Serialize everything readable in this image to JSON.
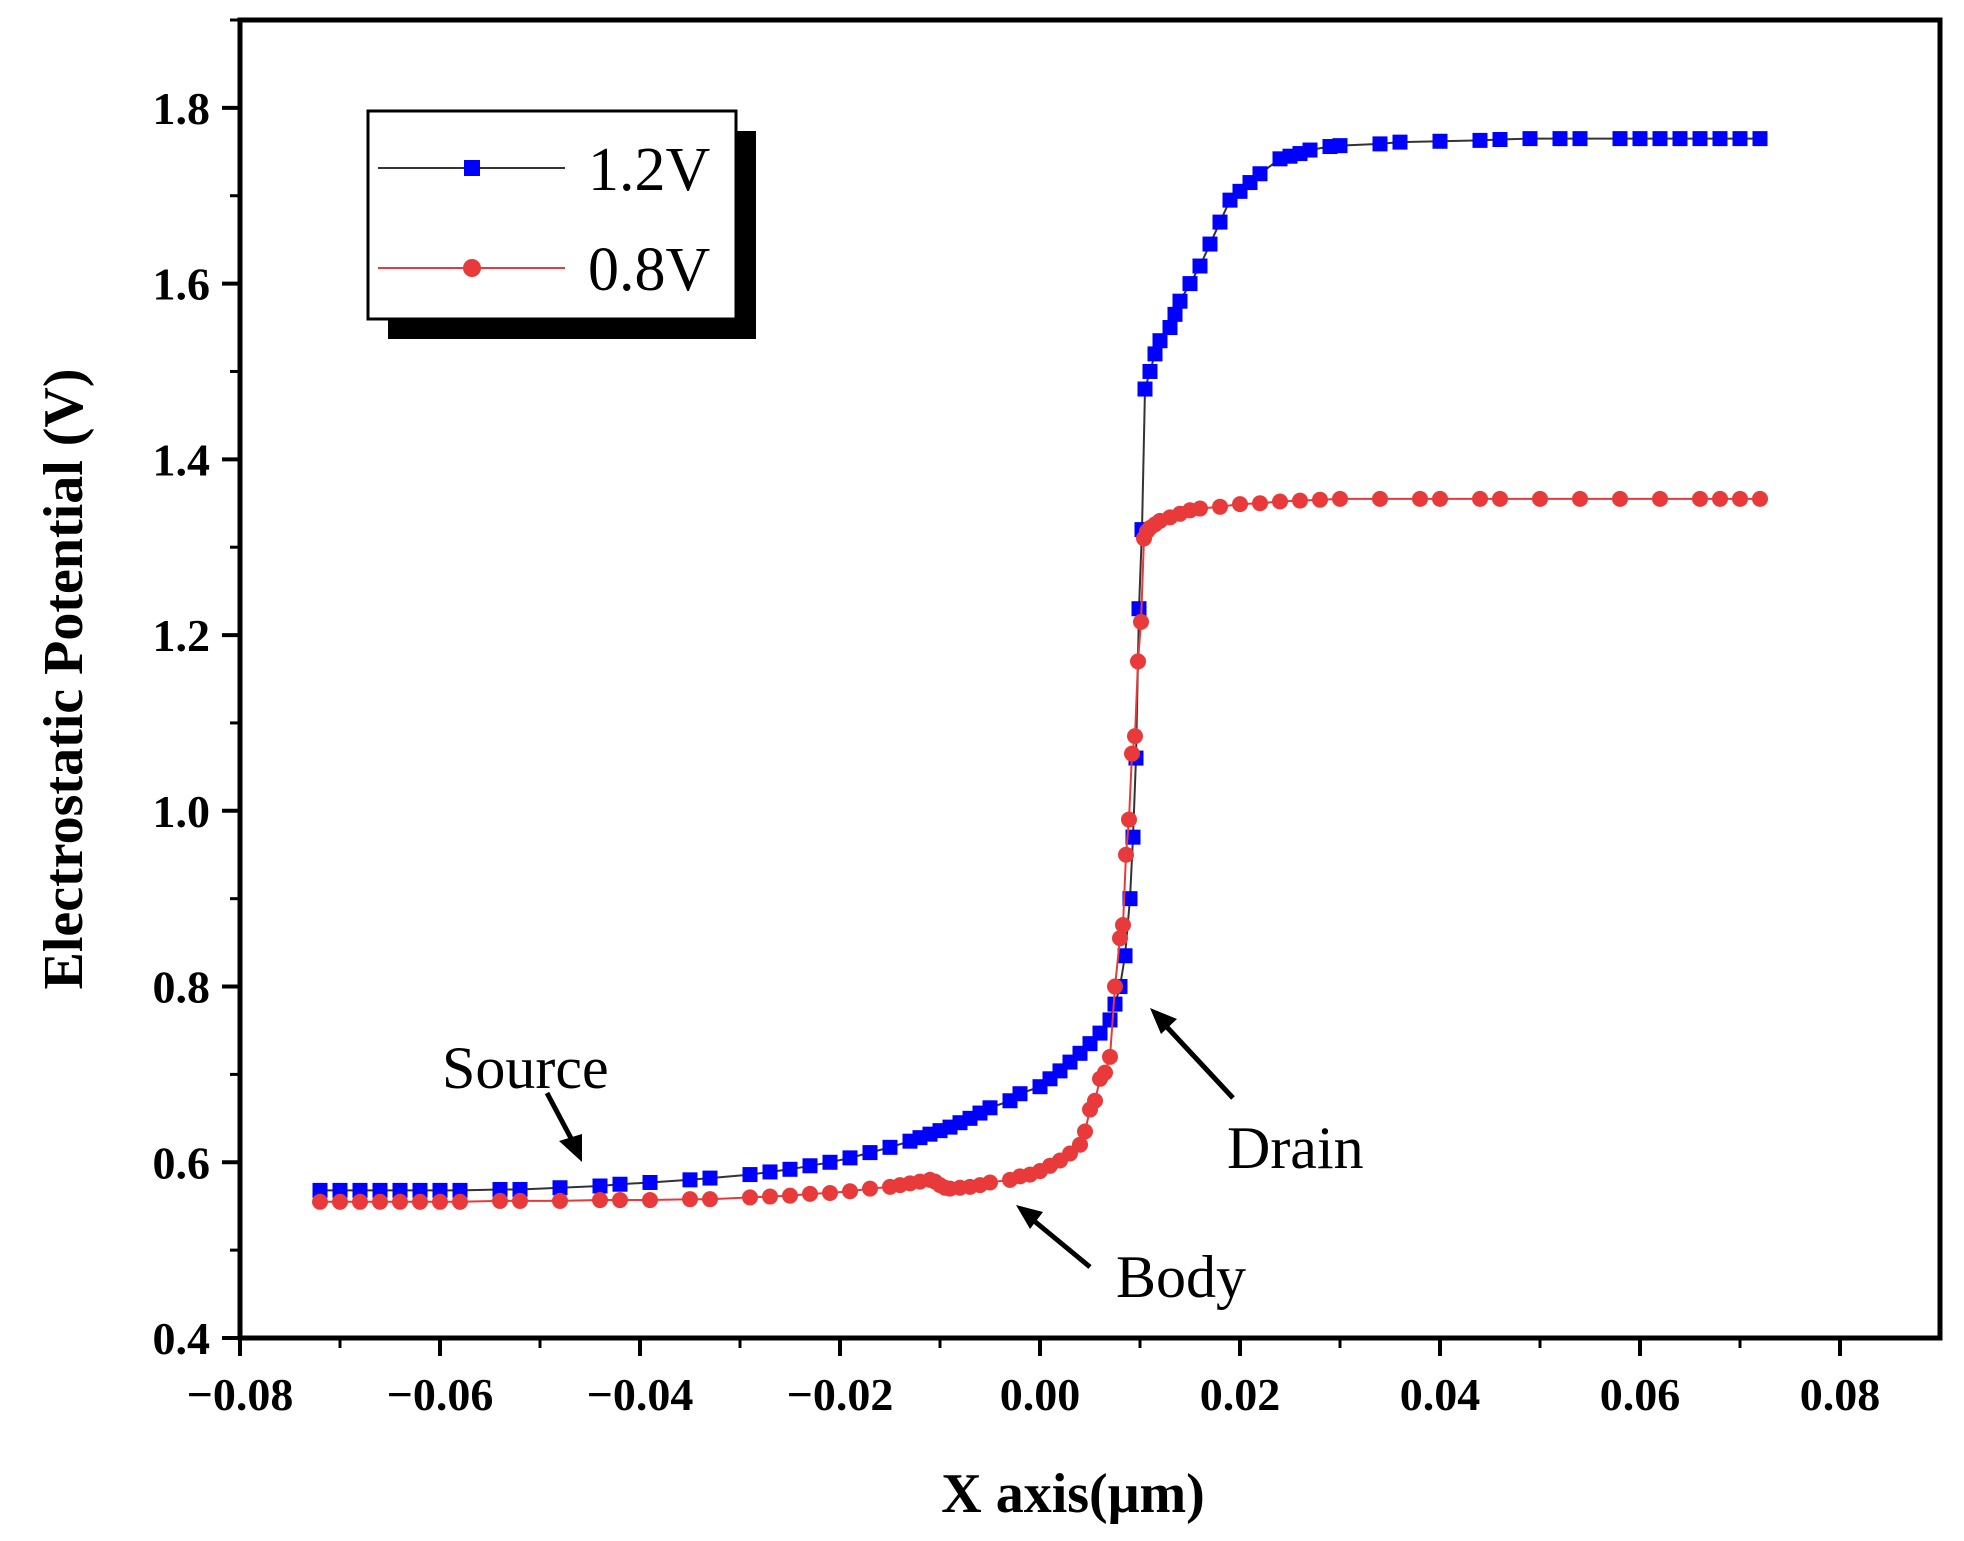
{
  "chart_data": {
    "type": "line",
    "title": "",
    "xlabel": "X axis(μm)",
    "ylabel": "Electrostatic Potential (V)",
    "xlim": [
      -0.08,
      0.09
    ],
    "ylim": [
      0.4,
      1.9
    ],
    "x_ticks": [
      -0.08,
      -0.06,
      -0.04,
      -0.02,
      0.0,
      0.02,
      0.04,
      0.06,
      0.08
    ],
    "x_tick_labels": [
      "−0.08",
      "−0.06",
      "−0.04",
      "−0.02",
      "0.00",
      "0.02",
      "0.04",
      "0.06",
      "0.08"
    ],
    "y_ticks": [
      0.4,
      0.6,
      0.8,
      1.0,
      1.2,
      1.4,
      1.6,
      1.8
    ],
    "y_tick_labels": [
      "0.4",
      "0.6",
      "0.8",
      "1.0",
      "1.2",
      "1.4",
      "1.6",
      "1.8"
    ],
    "legend_position": "top-left",
    "series": [
      {
        "name": "1.2V",
        "color": "#0000ff",
        "line_color": "#333333",
        "marker": "square",
        "x": [
          -0.072,
          -0.07,
          -0.068,
          -0.066,
          -0.064,
          -0.062,
          -0.06,
          -0.058,
          -0.054,
          -0.052,
          -0.048,
          -0.044,
          -0.042,
          -0.039,
          -0.035,
          -0.033,
          -0.029,
          -0.027,
          -0.025,
          -0.023,
          -0.021,
          -0.019,
          -0.017,
          -0.015,
          -0.013,
          -0.012,
          -0.011,
          -0.01,
          -0.009,
          -0.008,
          -0.007,
          -0.006,
          -0.005,
          -0.003,
          -0.002,
          0.0,
          0.001,
          0.002,
          0.003,
          0.004,
          0.005,
          0.006,
          0.007,
          0.0075,
          0.008,
          0.0085,
          0.009,
          0.0093,
          0.0096,
          0.0099,
          0.0102,
          0.0105,
          0.011,
          0.0115,
          0.012,
          0.013,
          0.0135,
          0.014,
          0.015,
          0.016,
          0.017,
          0.018,
          0.019,
          0.02,
          0.021,
          0.022,
          0.024,
          0.025,
          0.026,
          0.027,
          0.029,
          0.03,
          0.034,
          0.036,
          0.04,
          0.044,
          0.046,
          0.049,
          0.052,
          0.054,
          0.058,
          0.06,
          0.062,
          0.064,
          0.066,
          0.068,
          0.07,
          0.072
        ],
        "y": [
          0.568,
          0.568,
          0.568,
          0.568,
          0.568,
          0.568,
          0.568,
          0.568,
          0.569,
          0.569,
          0.571,
          0.573,
          0.575,
          0.577,
          0.58,
          0.582,
          0.586,
          0.589,
          0.592,
          0.596,
          0.6,
          0.605,
          0.611,
          0.617,
          0.624,
          0.628,
          0.632,
          0.636,
          0.64,
          0.645,
          0.65,
          0.656,
          0.662,
          0.67,
          0.678,
          0.686,
          0.695,
          0.704,
          0.714,
          0.724,
          0.735,
          0.747,
          0.762,
          0.78,
          0.8,
          0.835,
          0.9,
          0.97,
          1.06,
          1.23,
          1.32,
          1.48,
          1.5,
          1.52,
          1.535,
          1.55,
          1.565,
          1.58,
          1.6,
          1.62,
          1.645,
          1.67,
          1.695,
          1.705,
          1.715,
          1.725,
          1.742,
          1.745,
          1.748,
          1.752,
          1.756,
          1.757,
          1.759,
          1.761,
          1.762,
          1.763,
          1.764,
          1.765,
          1.765,
          1.765,
          1.765,
          1.765,
          1.765,
          1.765,
          1.765,
          1.765,
          1.765,
          1.765
        ]
      },
      {
        "name": "0.8V",
        "color": "#e83a3a",
        "line_color": "#e83a3a",
        "marker": "circle",
        "x": [
          -0.072,
          -0.07,
          -0.068,
          -0.066,
          -0.064,
          -0.062,
          -0.06,
          -0.058,
          -0.054,
          -0.052,
          -0.048,
          -0.044,
          -0.042,
          -0.039,
          -0.035,
          -0.033,
          -0.029,
          -0.027,
          -0.025,
          -0.023,
          -0.021,
          -0.019,
          -0.017,
          -0.015,
          -0.014,
          -0.013,
          -0.012,
          -0.011,
          -0.0105,
          -0.01,
          -0.0095,
          -0.009,
          -0.008,
          -0.007,
          -0.006,
          -0.005,
          -0.003,
          -0.002,
          -0.001,
          0.0,
          0.001,
          0.002,
          0.003,
          0.004,
          0.0045,
          0.005,
          0.0055,
          0.006,
          0.0065,
          0.007,
          0.0075,
          0.008,
          0.0083,
          0.0086,
          0.0089,
          0.0092,
          0.0095,
          0.0098,
          0.0101,
          0.0104,
          0.0107,
          0.011,
          0.0115,
          0.012,
          0.013,
          0.014,
          0.015,
          0.016,
          0.018,
          0.02,
          0.022,
          0.024,
          0.026,
          0.028,
          0.03,
          0.034,
          0.038,
          0.04,
          0.044,
          0.046,
          0.05,
          0.054,
          0.058,
          0.062,
          0.066,
          0.068,
          0.07,
          0.072
        ],
        "y": [
          0.555,
          0.555,
          0.555,
          0.555,
          0.555,
          0.555,
          0.555,
          0.555,
          0.556,
          0.556,
          0.556,
          0.557,
          0.557,
          0.557,
          0.558,
          0.558,
          0.56,
          0.561,
          0.562,
          0.564,
          0.565,
          0.567,
          0.57,
          0.572,
          0.574,
          0.576,
          0.578,
          0.58,
          0.578,
          0.574,
          0.571,
          0.57,
          0.571,
          0.572,
          0.574,
          0.577,
          0.58,
          0.584,
          0.586,
          0.59,
          0.596,
          0.602,
          0.61,
          0.62,
          0.635,
          0.66,
          0.67,
          0.695,
          0.702,
          0.72,
          0.8,
          0.855,
          0.87,
          0.95,
          0.99,
          1.065,
          1.085,
          1.17,
          1.215,
          1.31,
          1.318,
          1.322,
          1.326,
          1.33,
          1.334,
          1.338,
          1.342,
          1.344,
          1.346,
          1.349,
          1.35,
          1.352,
          1.353,
          1.354,
          1.355,
          1.355,
          1.355,
          1.355,
          1.355,
          1.355,
          1.355,
          1.355,
          1.355,
          1.355,
          1.355,
          1.355,
          1.355,
          1.355
        ]
      }
    ],
    "annotations": [
      {
        "name": "source",
        "text": "Source",
        "at_x": -0.046,
        "at_y": 0.572
      },
      {
        "name": "drain",
        "text": "Drain",
        "at_x": 0.0095,
        "at_y": 0.78
      },
      {
        "name": "body",
        "text": "Body",
        "at_x": -0.0035,
        "at_y": 0.578
      }
    ]
  }
}
